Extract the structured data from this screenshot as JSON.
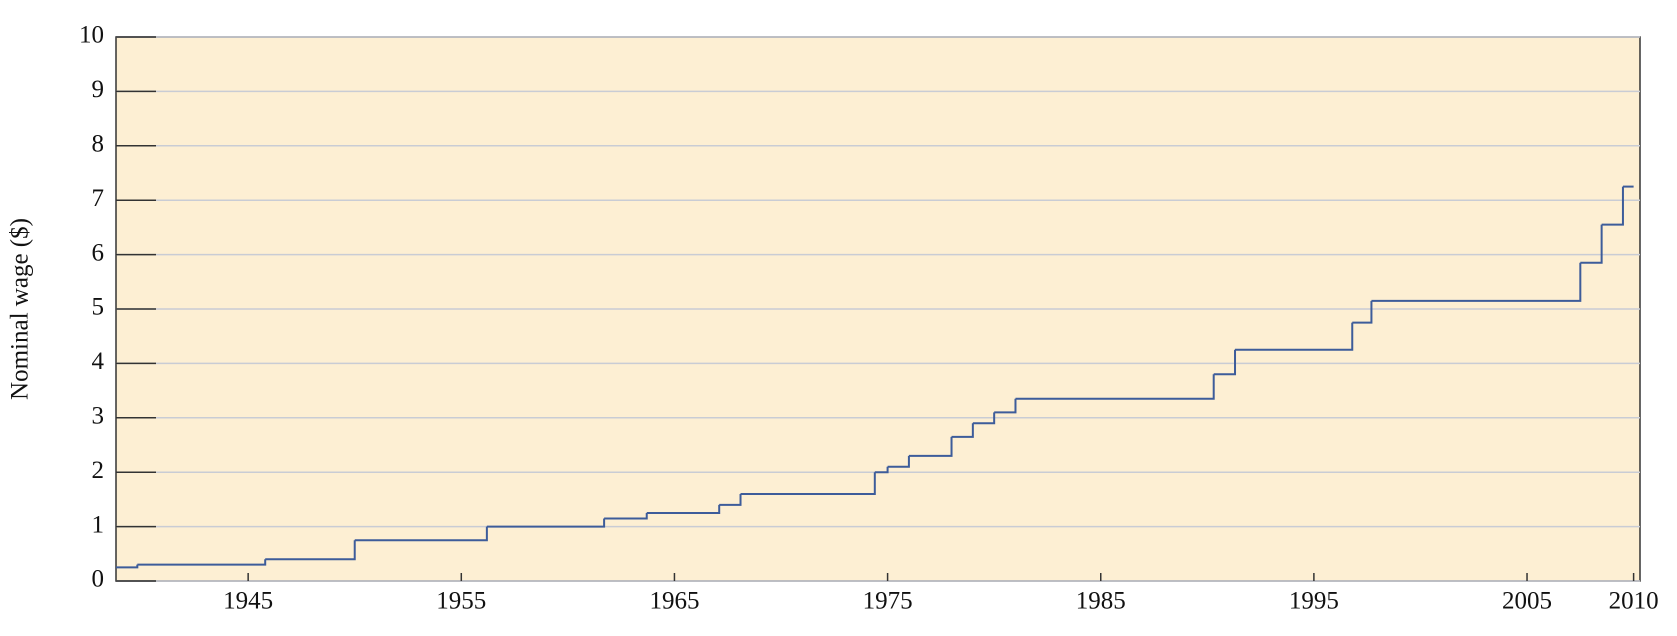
{
  "chart_data": {
    "type": "step",
    "y_label": "Nominal wage ($)",
    "x": [
      1938.8,
      1939.8,
      1945.8,
      1950.0,
      1956.2,
      1961.7,
      1963.7,
      1967.1,
      1968.1,
      1974.4,
      1975.0,
      1976.0,
      1978.0,
      1979.0,
      1980.0,
      1981.0,
      1990.3,
      1991.3,
      1996.8,
      1997.7,
      2007.5,
      2008.5,
      2009.5,
      2010.0
    ],
    "values": [
      0.25,
      0.3,
      0.4,
      0.75,
      1.0,
      1.15,
      1.25,
      1.4,
      1.6,
      2.0,
      2.1,
      2.3,
      2.65,
      2.9,
      3.1,
      3.35,
      3.8,
      4.25,
      4.75,
      5.15,
      5.85,
      6.55,
      7.25,
      7.25
    ],
    "color": "#3d5c9a",
    "xlim": [
      1938.8,
      2010.3
    ],
    "xticks": [
      1945,
      1955,
      1965,
      1975,
      1985,
      1995,
      2005,
      2010
    ],
    "ylim": [
      0,
      10
    ],
    "yticks": [
      0,
      1,
      2,
      3,
      4,
      5,
      6,
      7,
      8,
      9,
      10
    ],
    "grid": true
  }
}
